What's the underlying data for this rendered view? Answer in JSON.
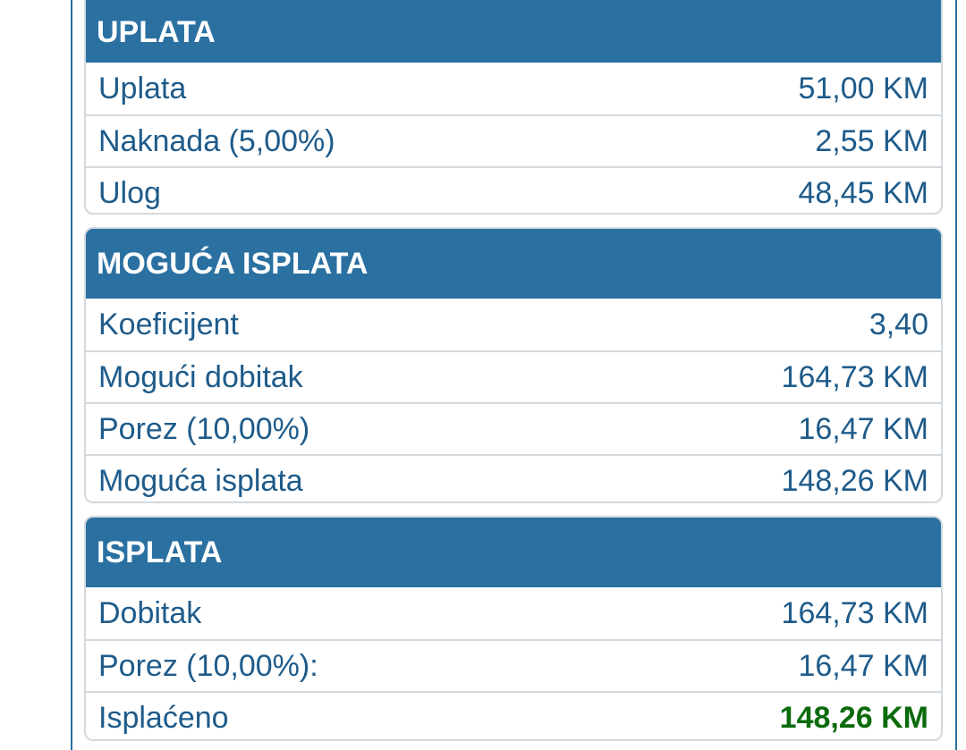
{
  "sections": [
    {
      "title": "UPLATA",
      "rows": [
        {
          "label": "Uplata",
          "value": "51,00 KM"
        },
        {
          "label": "Naknada (5,00%)",
          "value": "2,55 KM"
        },
        {
          "label": "Ulog",
          "value": "48,45 KM"
        }
      ]
    },
    {
      "title": "MOGUĆA ISPLATA",
      "rows": [
        {
          "label": "Koeficijent",
          "value": "3,40"
        },
        {
          "label": "Mogući dobitak",
          "value": "164,73 KM"
        },
        {
          "label": "Porez (10,00%)",
          "value": "16,47 KM"
        },
        {
          "label": "Moguća isplata",
          "value": "148,26 KM"
        }
      ]
    },
    {
      "title": "ISPLATA",
      "rows": [
        {
          "label": "Dobitak",
          "value": "164,73 KM"
        },
        {
          "label": "Porez (10,00%):",
          "value": "16,47 KM"
        },
        {
          "label": "Isplaćeno",
          "value": "148,26 KM"
        }
      ]
    }
  ],
  "colors": {
    "header_bg": "#2a70a1",
    "text": "#1e5b8a",
    "paid_out": "#0b6b0b"
  }
}
